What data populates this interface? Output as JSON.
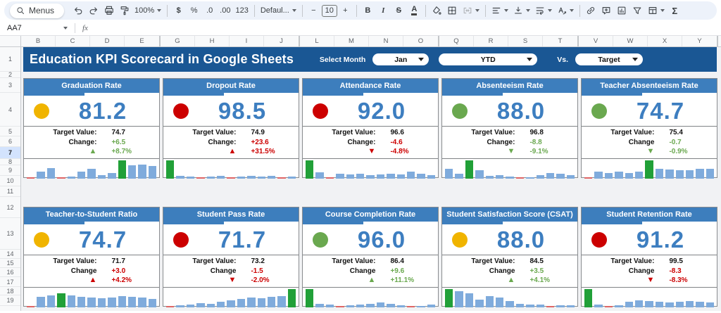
{
  "toolbar": {
    "menus": "Menus",
    "zoom": "100%",
    "currency": "$",
    "percent": "%",
    "decrease_decimal": ".0",
    "increase_decimal": ".00",
    "more_formats": "123",
    "font": "Defaul...",
    "size_minus": "−",
    "font_size": "10",
    "size_plus": "+",
    "bold": "B",
    "italic": "I",
    "strikethrough": "S",
    "text_color": "A",
    "functions": "Σ"
  },
  "formula_bar": {
    "name_box": "AA7",
    "fx": "fx"
  },
  "grid": {
    "column_groups": [
      [
        "B",
        "C",
        "D",
        "E"
      ],
      [
        "G",
        "H",
        "I",
        "J"
      ],
      [
        "L",
        "M",
        "N",
        "O"
      ],
      [
        "Q",
        "R",
        "S",
        "T"
      ],
      [
        "V",
        "W",
        "X",
        "Y"
      ]
    ],
    "rows": [
      "1",
      "2",
      "3",
      "4",
      "5",
      "6",
      "7",
      "8",
      "9",
      "10",
      "11",
      "12",
      "13",
      "14",
      "15",
      "16",
      "17",
      "18",
      "19"
    ],
    "selected_row": "7"
  },
  "header": {
    "title": "Education KPI Scorecard in Google Sheets",
    "select_month_label": "Select Month",
    "month_value": "Jan",
    "period_value": "YTD",
    "vs_label": "Vs.",
    "compare_value": "Target"
  },
  "colors": {
    "title_bar": "#1a5794",
    "card_header": "#3d7ebd",
    "kpi_value": "#3d7ec0",
    "good": "#6aa84f",
    "bad": "#cc0000",
    "status_yellow": "#f0b400",
    "status_red": "#cc0000",
    "status_green": "#6aa84f",
    "bar_blue": "#7fabdc",
    "bar_green": "#21a038",
    "bar_red": "#e06666"
  },
  "cards": [
    {
      "title": "Graduation Rate",
      "status": "#f0b400",
      "value": "81.2",
      "target_label": "Target Value:",
      "target": "74.7",
      "change_label": "Change:",
      "change": "+6.5",
      "trend": "up",
      "trend_pct": "+8.7%",
      "sentiment": "good",
      "bars": [
        [
          3,
          "r"
        ],
        [
          40,
          "b"
        ],
        [
          58,
          "b"
        ],
        [
          3,
          "r"
        ],
        [
          12,
          "b"
        ],
        [
          38,
          "b"
        ],
        [
          55,
          "b"
        ],
        [
          20,
          "b"
        ],
        [
          30,
          "b"
        ],
        [
          100,
          "g"
        ],
        [
          72,
          "b"
        ],
        [
          78,
          "b"
        ],
        [
          70,
          "b"
        ]
      ]
    },
    {
      "title": "Dropout Rate",
      "status": "#cc0000",
      "value": "98.5",
      "target_label": "Target Value:",
      "target": "74.9",
      "change_label": "Change:",
      "change": "+23.6",
      "trend": "up",
      "trend_pct": "+31.5%",
      "sentiment": "bad",
      "bars": [
        [
          100,
          "g"
        ],
        [
          15,
          "b"
        ],
        [
          12,
          "b"
        ],
        [
          3,
          "r"
        ],
        [
          10,
          "b"
        ],
        [
          14,
          "b"
        ],
        [
          3,
          "r"
        ],
        [
          12,
          "b"
        ],
        [
          15,
          "b"
        ],
        [
          12,
          "b"
        ],
        [
          14,
          "b"
        ],
        [
          3,
          "r"
        ],
        [
          10,
          "b"
        ]
      ]
    },
    {
      "title": "Attendance Rate",
      "status": "#cc0000",
      "value": "92.0",
      "target_label": "Target Value:",
      "target": "96.6",
      "change_label": "Change:",
      "change": "-4.6",
      "trend": "down",
      "trend_pct": "-4.8%",
      "sentiment": "bad",
      "bars": [
        [
          100,
          "g"
        ],
        [
          35,
          "b"
        ],
        [
          3,
          "r"
        ],
        [
          25,
          "b"
        ],
        [
          22,
          "b"
        ],
        [
          28,
          "b"
        ],
        [
          20,
          "b"
        ],
        [
          22,
          "b"
        ],
        [
          25,
          "b"
        ],
        [
          22,
          "b"
        ],
        [
          38,
          "b"
        ],
        [
          28,
          "b"
        ],
        [
          20,
          "b"
        ]
      ]
    },
    {
      "title": "Absenteeism Rate",
      "status": "#6aa84f",
      "value": "88.0",
      "target_label": "Target Value:",
      "target": "96.8",
      "change_label": "Change:",
      "change": "-8.8",
      "trend": "down",
      "trend_pct": "-9.1%",
      "sentiment": "good",
      "bars": [
        [
          55,
          "b"
        ],
        [
          28,
          "b"
        ],
        [
          100,
          "g"
        ],
        [
          45,
          "b"
        ],
        [
          16,
          "b"
        ],
        [
          20,
          "b"
        ],
        [
          10,
          "b"
        ],
        [
          3,
          "r"
        ],
        [
          8,
          "b"
        ],
        [
          18,
          "b"
        ],
        [
          30,
          "b"
        ],
        [
          25,
          "b"
        ],
        [
          20,
          "b"
        ]
      ]
    },
    {
      "title": "Teacher Absenteeism Rate",
      "status": "#6aa84f",
      "value": "74.7",
      "target_label": "Target Value:",
      "target": "75.4",
      "change_label": "Change",
      "change": "-0.7",
      "trend": "down",
      "trend_pct": "-0.9%",
      "sentiment": "good",
      "bars": [
        [
          3,
          "r"
        ],
        [
          40,
          "b"
        ],
        [
          32,
          "b"
        ],
        [
          38,
          "b"
        ],
        [
          32,
          "b"
        ],
        [
          38,
          "b"
        ],
        [
          100,
          "g"
        ],
        [
          55,
          "b"
        ],
        [
          50,
          "b"
        ],
        [
          45,
          "b"
        ],
        [
          48,
          "b"
        ],
        [
          55,
          "b"
        ],
        [
          52,
          "b"
        ]
      ]
    },
    {
      "title": "Teacher-to-Student Ratio",
      "status": "#f0b400",
      "value": "74.7",
      "target_label": "Target Value:",
      "target": "71.7",
      "change_label": "Change",
      "change": "+3.0",
      "trend": "up",
      "trend_pct": "+4.2%",
      "sentiment": "bad",
      "bars": [
        [
          3,
          "r"
        ],
        [
          58,
          "b"
        ],
        [
          66,
          "b"
        ],
        [
          78,
          "g"
        ],
        [
          64,
          "b"
        ],
        [
          58,
          "b"
        ],
        [
          54,
          "b"
        ],
        [
          50,
          "b"
        ],
        [
          54,
          "b"
        ],
        [
          60,
          "b"
        ],
        [
          56,
          "b"
        ],
        [
          52,
          "b"
        ],
        [
          48,
          "b"
        ]
      ]
    },
    {
      "title": "Student Pass Rate",
      "status": "#cc0000",
      "value": "71.7",
      "target_label": "Target Value:",
      "target": "73.2",
      "change_label": "Change",
      "change": "-1.5",
      "trend": "down",
      "trend_pct": "-2.0%",
      "sentiment": "bad",
      "bars": [
        [
          3,
          "r"
        ],
        [
          10,
          "b"
        ],
        [
          16,
          "b"
        ],
        [
          24,
          "b"
        ],
        [
          20,
          "b"
        ],
        [
          32,
          "b"
        ],
        [
          38,
          "b"
        ],
        [
          48,
          "b"
        ],
        [
          54,
          "b"
        ],
        [
          50,
          "b"
        ],
        [
          58,
          "b"
        ],
        [
          62,
          "b"
        ],
        [
          100,
          "g"
        ]
      ]
    },
    {
      "title": "Course Completion Rate",
      "status": "#6aa84f",
      "value": "96.0",
      "target_label": "Target Value:",
      "target": "86.4",
      "change_label": "Change",
      "change": "+9.6",
      "trend": "up",
      "trend_pct": "+11.1%",
      "sentiment": "good",
      "bars": [
        [
          100,
          "g"
        ],
        [
          18,
          "b"
        ],
        [
          15,
          "b"
        ],
        [
          3,
          "r"
        ],
        [
          10,
          "b"
        ],
        [
          14,
          "b"
        ],
        [
          20,
          "b"
        ],
        [
          26,
          "b"
        ],
        [
          18,
          "b"
        ],
        [
          12,
          "b"
        ],
        [
          3,
          "r"
        ],
        [
          8,
          "b"
        ],
        [
          14,
          "b"
        ]
      ]
    },
    {
      "title": "Student Satisfaction Score (CSAT)",
      "status": "#f0b400",
      "value": "88.0",
      "target_label": "Target Value:",
      "target": "84.5",
      "change_label": "Change",
      "change": "+3.5",
      "trend": "up",
      "trend_pct": "+4.1%",
      "sentiment": "good",
      "bars": [
        [
          100,
          "g"
        ],
        [
          88,
          "b"
        ],
        [
          78,
          "b"
        ],
        [
          42,
          "b"
        ],
        [
          60,
          "b"
        ],
        [
          55,
          "b"
        ],
        [
          34,
          "b"
        ],
        [
          18,
          "b"
        ],
        [
          15,
          "b"
        ],
        [
          14,
          "b"
        ],
        [
          3,
          "r"
        ],
        [
          12,
          "b"
        ],
        [
          10,
          "b"
        ]
      ]
    },
    {
      "title": "Student Retention Rate",
      "status": "#cc0000",
      "value": "91.2",
      "target_label": "Target Value:",
      "target": "99.5",
      "change_label": "Change",
      "change": "-8.3",
      "trend": "down",
      "trend_pct": "-8.3%",
      "sentiment": "bad",
      "bars": [
        [
          100,
          "g"
        ],
        [
          15,
          "b"
        ],
        [
          3,
          "r"
        ],
        [
          12,
          "b"
        ],
        [
          32,
          "b"
        ],
        [
          38,
          "b"
        ],
        [
          34,
          "b"
        ],
        [
          30,
          "b"
        ],
        [
          28,
          "b"
        ],
        [
          32,
          "b"
        ],
        [
          34,
          "b"
        ],
        [
          30,
          "b"
        ],
        [
          26,
          "b"
        ]
      ]
    }
  ]
}
